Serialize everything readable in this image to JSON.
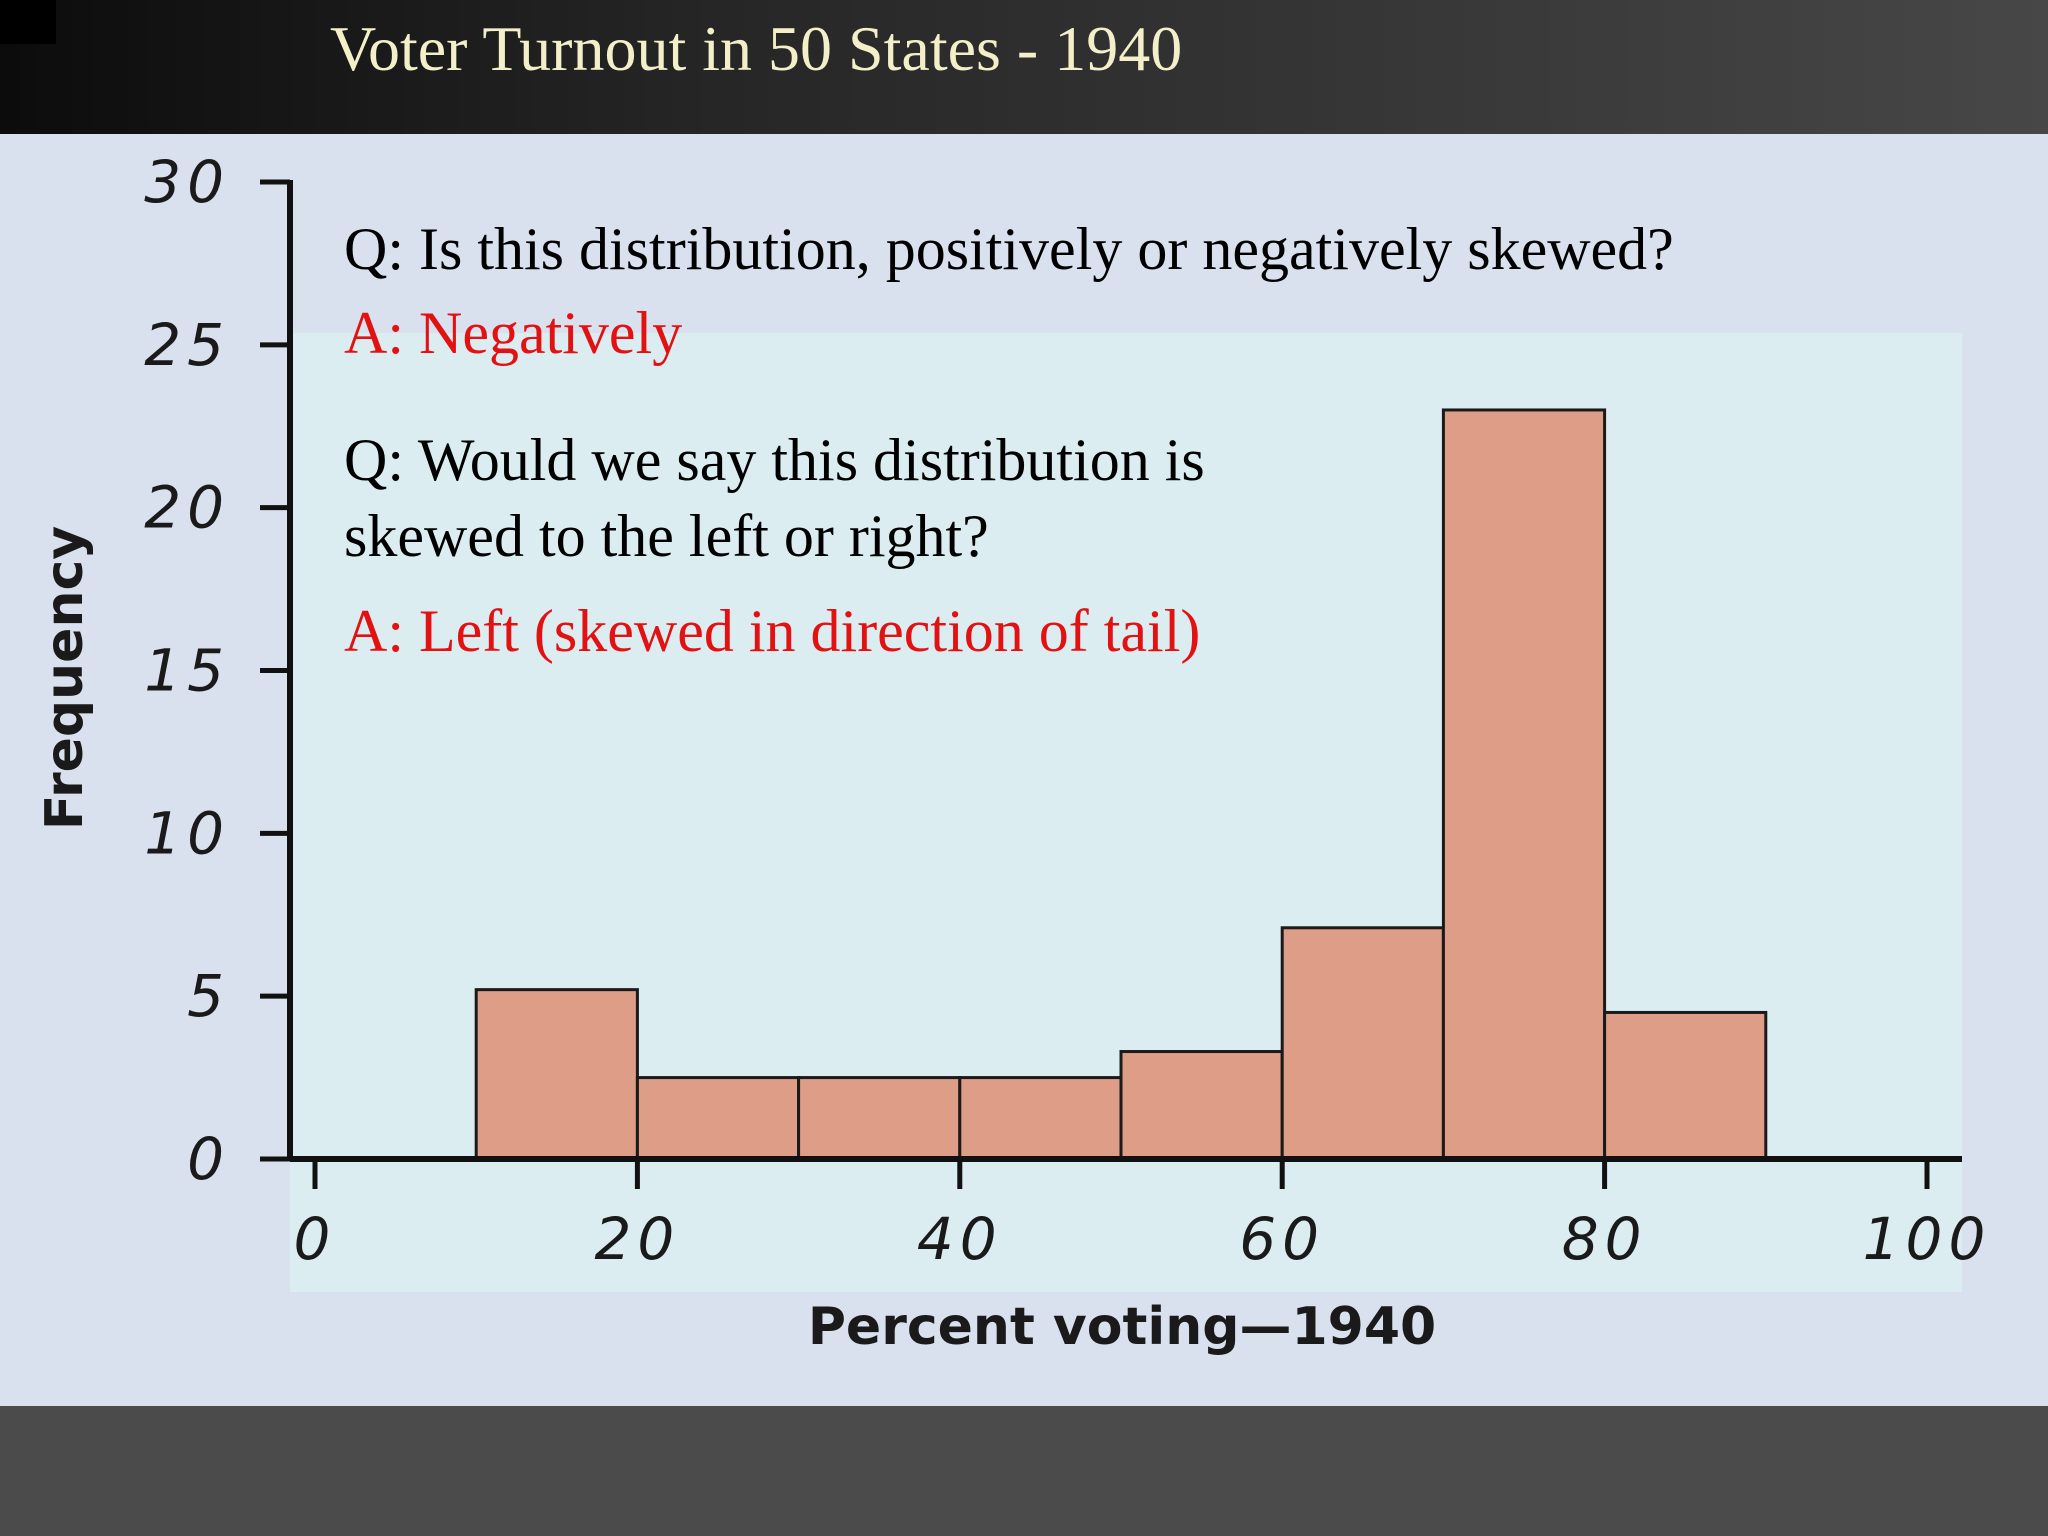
{
  "slide": {
    "title": "Voter Turnout in 50 States - 1940"
  },
  "annotations": {
    "q1": "Q: Is this distribution, positively or negatively skewed?",
    "a1": "A: Negatively",
    "q2_line1": "Q:  Would we say this distribution is",
    "q2_line2": "skewed to the left or right?",
    "a2": "A:  Left (skewed in direction of tail)"
  },
  "colors": {
    "bar_fill": "#de9d87",
    "bar_stroke": "#1a1a1a",
    "answer_text": "#e31212",
    "plot_background": "#dcedf2",
    "title_text": "#f3efc8"
  },
  "chart_data": {
    "type": "bar",
    "bins": [
      {
        "from": 10,
        "to": 20,
        "value": 5.2
      },
      {
        "from": 20,
        "to": 30,
        "value": 2.5
      },
      {
        "from": 30,
        "to": 40,
        "value": 2.5
      },
      {
        "from": 40,
        "to": 50,
        "value": 2.5
      },
      {
        "from": 50,
        "to": 60,
        "value": 3.3
      },
      {
        "from": 60,
        "to": 70,
        "value": 7.1
      },
      {
        "from": 70,
        "to": 80,
        "value": 23
      },
      {
        "from": 80,
        "to": 90,
        "value": 4.5
      }
    ],
    "xlabel": "Percent voting—1940",
    "ylabel": "Frequency",
    "xlim": [
      0,
      100
    ],
    "ylim": [
      0,
      30
    ],
    "x_ticks": [
      "0",
      "20",
      "40",
      "60",
      "80",
      "100"
    ],
    "y_ticks": [
      "0",
      "5",
      "10",
      "15",
      "20",
      "25",
      "30"
    ],
    "grid": false
  }
}
